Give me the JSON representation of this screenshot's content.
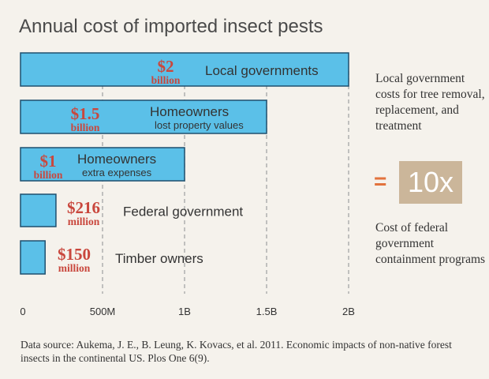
{
  "chart_data": {
    "type": "bar",
    "orientation": "horizontal",
    "title": "Annual cost of imported insect pests",
    "categories": [
      "Local governments",
      "Homeowners",
      "Homeowners",
      "Federal government",
      "Timber owners"
    ],
    "category_sublabels": [
      "",
      "lost property values",
      "extra expenses",
      "",
      ""
    ],
    "values": [
      2000000000,
      1500000000,
      1000000000,
      216000000,
      150000000
    ],
    "amount_labels": [
      {
        "amount": "$2",
        "unit": "billion"
      },
      {
        "amount": "$1.5",
        "unit": "billion"
      },
      {
        "amount": "$1",
        "unit": "billion"
      },
      {
        "amount": "$216",
        "unit": "million"
      },
      {
        "amount": "$150",
        "unit": "million"
      }
    ],
    "x_ticks": [
      0,
      500000000,
      1000000000,
      1500000000,
      2000000000
    ],
    "x_tick_labels": [
      "0",
      "500M",
      "1B",
      "1.5B",
      "2B"
    ],
    "xlim": [
      0,
      2000000000
    ],
    "grid": "vertical dashed",
    "colors": {
      "bar_fill": "#5bc0e8",
      "bar_stroke": "#1f4f6e",
      "amount": "#c9473d",
      "grid": "#aaaaaa"
    }
  },
  "side_panel": {
    "top_text": "Local government costs for tree removal, replacement, and treatment",
    "equals": "=",
    "multiplier": "10x",
    "bottom_text": "Cost of federal government containment programs",
    "colors": {
      "equals": "#e2733d",
      "multiplier_bg": "#cbb69a"
    }
  },
  "source": "Data source: Aukema, J. E., B. Leung, K. Kovacs, et al. 2011. Economic impacts of non-native forest insects in the continental US. Plos One 6(9)."
}
